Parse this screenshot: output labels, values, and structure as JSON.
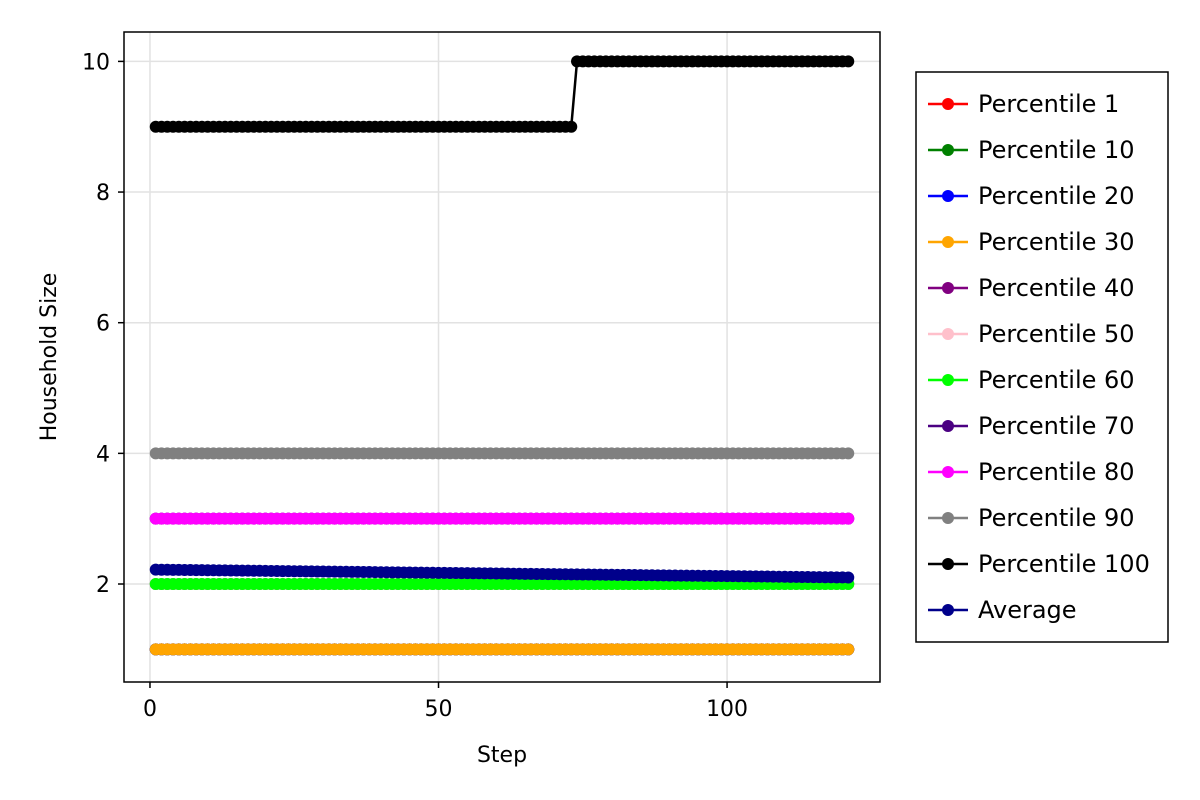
{
  "chart_data": {
    "type": "line",
    "title": "",
    "xlabel": "Step",
    "ylabel": "Household Size",
    "xlim": [
      -4.5,
      126.5
    ],
    "ylim": [
      0.5,
      10.45
    ],
    "xticks": [
      0,
      50,
      100
    ],
    "yticks": [
      2,
      4,
      6,
      8,
      10
    ],
    "grid": true,
    "legend_position": "right",
    "x_start": 1,
    "x_end": 121,
    "series": [
      {
        "name": "Percentile 1",
        "color": "#ff0000",
        "segments": [
          {
            "from": 1,
            "to": 121,
            "y0": 1,
            "y1": 1
          }
        ]
      },
      {
        "name": "Percentile 10",
        "color": "#008000",
        "segments": [
          {
            "from": 1,
            "to": 121,
            "y0": 1,
            "y1": 1
          }
        ]
      },
      {
        "name": "Percentile 20",
        "color": "#0000ff",
        "segments": [
          {
            "from": 1,
            "to": 121,
            "y0": 1,
            "y1": 1
          }
        ]
      },
      {
        "name": "Percentile 30",
        "color": "#ffa500",
        "segments": [
          {
            "from": 1,
            "to": 121,
            "y0": 1,
            "y1": 1
          }
        ]
      },
      {
        "name": "Percentile 40",
        "color": "#800080",
        "segments": [
          {
            "from": 1,
            "to": 121,
            "y0": 2,
            "y1": 2
          }
        ]
      },
      {
        "name": "Percentile 50",
        "color": "#ffc0cb",
        "segments": [
          {
            "from": 1,
            "to": 121,
            "y0": 2,
            "y1": 2
          }
        ]
      },
      {
        "name": "Percentile 60",
        "color": "#00ff00",
        "segments": [
          {
            "from": 1,
            "to": 121,
            "y0": 2,
            "y1": 2
          }
        ]
      },
      {
        "name": "Percentile 70",
        "color": "#4b0082",
        "segments": [
          {
            "from": 1,
            "to": 121,
            "y0": 3,
            "y1": 3
          }
        ]
      },
      {
        "name": "Percentile 80",
        "color": "#ff00ff",
        "segments": [
          {
            "from": 1,
            "to": 121,
            "y0": 3,
            "y1": 3
          }
        ]
      },
      {
        "name": "Percentile 90",
        "color": "#808080",
        "segments": [
          {
            "from": 1,
            "to": 121,
            "y0": 4,
            "y1": 4
          }
        ]
      },
      {
        "name": "Percentile 100",
        "color": "#000000",
        "segments": [
          {
            "from": 1,
            "to": 73,
            "y0": 9,
            "y1": 9
          },
          {
            "from": 74,
            "to": 121,
            "y0": 10,
            "y1": 10
          }
        ]
      },
      {
        "name": "Average",
        "color": "#00008b",
        "segments": [
          {
            "from": 1,
            "to": 121,
            "y0": 2.22,
            "y1": 2.1
          }
        ]
      }
    ]
  }
}
